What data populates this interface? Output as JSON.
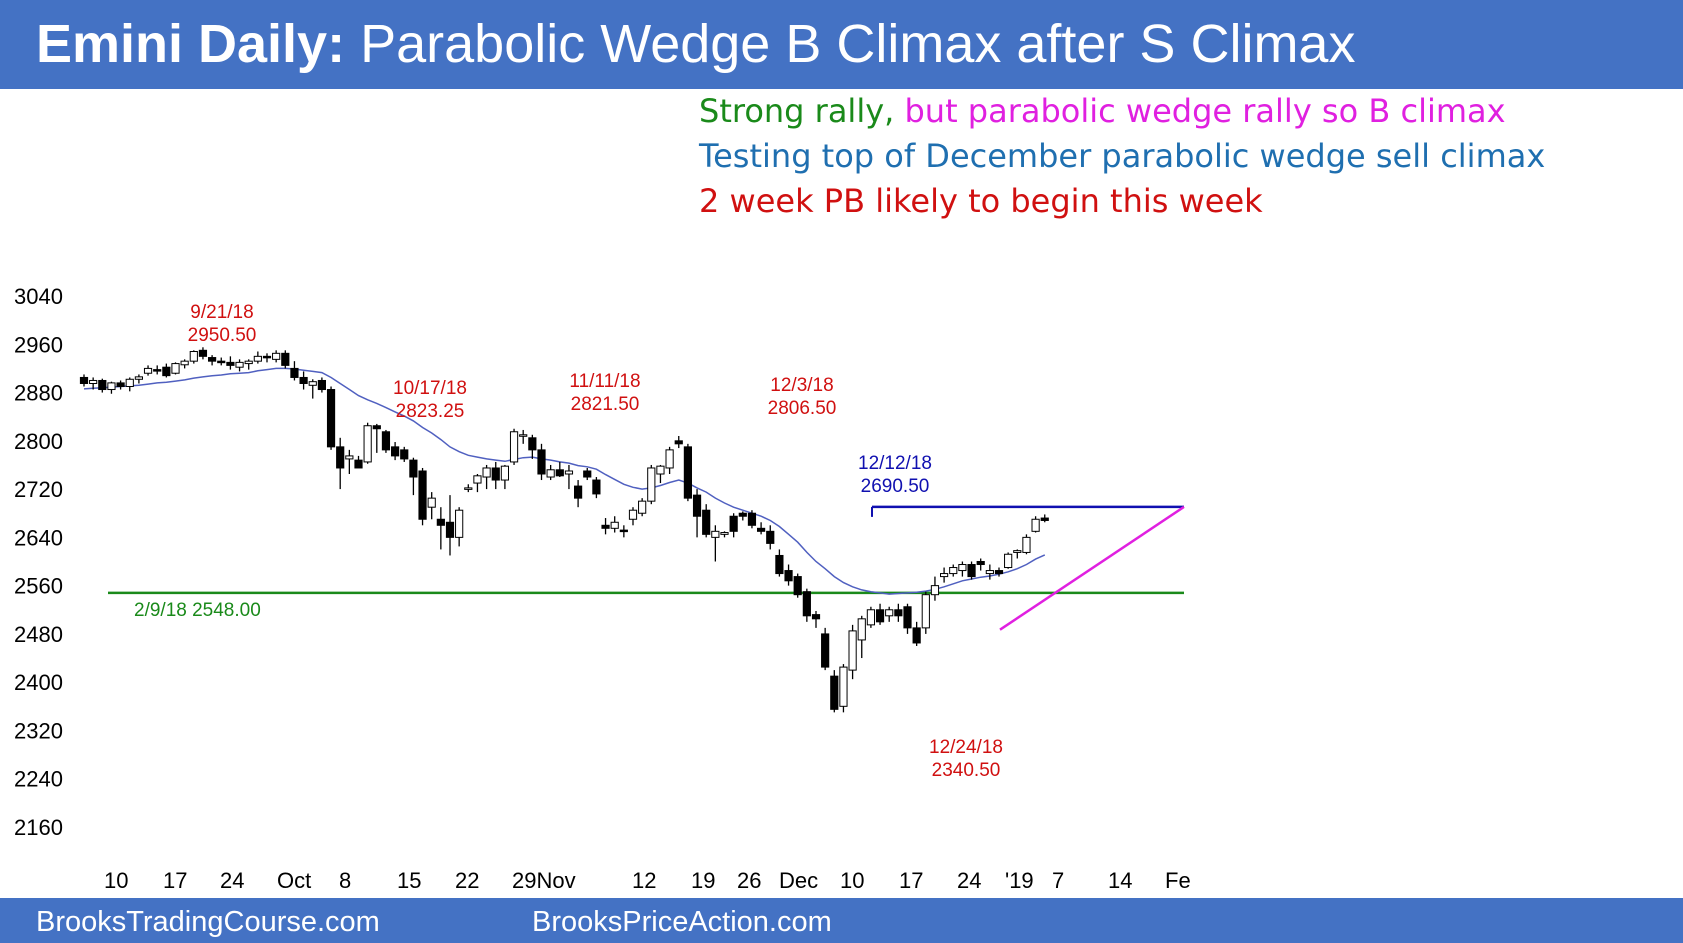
{
  "header": {
    "title_bold": "Emini Daily:",
    "title_rest": "Parabolic Wedge B Climax after S Climax"
  },
  "notes": {
    "line1_green": "Strong rally,",
    "line1_magenta": "but parabolic wedge rally so B climax",
    "line2": "Testing top of December parabolic wedge sell climax",
    "line3": "2 week PB likely to begin this week"
  },
  "footer": {
    "left": "BrooksTradingCourse.com",
    "right": "BrooksPriceAction.com"
  },
  "colors": {
    "header_bg": "#4472c4",
    "green": "#1a8a1a",
    "magenta": "#e020e0",
    "blue_text": "#1f6fb0",
    "red": "#d01010",
    "navy": "#1010b0",
    "ema": "#5060c0"
  },
  "chart_data": {
    "type": "candlestick",
    "ylim": [
      2160,
      3040
    ],
    "y_ticks": [
      3040,
      2960,
      2880,
      2800,
      2720,
      2640,
      2560,
      2480,
      2400,
      2320,
      2240,
      2160
    ],
    "x_tick_labels": [
      "10",
      "17",
      "24",
      "Oct",
      "8",
      "15",
      "22",
      "29Nov",
      "12",
      "19",
      "26",
      "Dec",
      "10",
      "17",
      "24",
      "'19",
      "7",
      "14",
      "Fe"
    ],
    "bars": [
      [
        2905,
        2910,
        2890,
        2895
      ],
      [
        2895,
        2905,
        2885,
        2900
      ],
      [
        2900,
        2903,
        2880,
        2885
      ],
      [
        2885,
        2898,
        2878,
        2896
      ],
      [
        2896,
        2900,
        2885,
        2890
      ],
      [
        2890,
        2905,
        2882,
        2902
      ],
      [
        2902,
        2910,
        2895,
        2906
      ],
      [
        2912,
        2925,
        2908,
        2920
      ],
      [
        2918,
        2925,
        2910,
        2916
      ],
      [
        2922,
        2928,
        2905,
        2908
      ],
      [
        2912,
        2930,
        2910,
        2928
      ],
      [
        2926,
        2935,
        2920,
        2932
      ],
      [
        2932,
        2950,
        2928,
        2948
      ],
      [
        2950,
        2955,
        2935,
        2940
      ],
      [
        2938,
        2942,
        2925,
        2932
      ],
      [
        2932,
        2938,
        2925,
        2930
      ],
      [
        2930,
        2940,
        2918,
        2925
      ],
      [
        2922,
        2935,
        2915,
        2930
      ],
      [
        2928,
        2935,
        2918,
        2932
      ],
      [
        2932,
        2948,
        2928,
        2940
      ],
      [
        2940,
        2945,
        2930,
        2938
      ],
      [
        2935,
        2950,
        2930,
        2945
      ],
      [
        2945,
        2950,
        2920,
        2925
      ],
      [
        2920,
        2932,
        2900,
        2905
      ],
      [
        2905,
        2915,
        2885,
        2895
      ],
      [
        2892,
        2902,
        2870,
        2898
      ],
      [
        2900,
        2905,
        2880,
        2885
      ],
      [
        2885,
        2890,
        2785,
        2790
      ],
      [
        2790,
        2805,
        2720,
        2755
      ],
      [
        2770,
        2785,
        2745,
        2775
      ],
      [
        2768,
        2775,
        2755,
        2755
      ],
      [
        2765,
        2830,
        2762,
        2825
      ],
      [
        2825,
        2828,
        2780,
        2820
      ],
      [
        2815,
        2818,
        2780,
        2785
      ],
      [
        2790,
        2798,
        2768,
        2775
      ],
      [
        2785,
        2790,
        2765,
        2770
      ],
      [
        2768,
        2772,
        2710,
        2740
      ],
      [
        2750,
        2755,
        2660,
        2670
      ],
      [
        2690,
        2715,
        2670,
        2705
      ],
      [
        2670,
        2690,
        2620,
        2660
      ],
      [
        2665,
        2710,
        2610,
        2640
      ],
      [
        2640,
        2690,
        2625,
        2685
      ],
      [
        2720,
        2728,
        2715,
        2722
      ],
      [
        2730,
        2745,
        2715,
        2742
      ],
      [
        2740,
        2760,
        2720,
        2755
      ],
      [
        2755,
        2765,
        2720,
        2735
      ],
      [
        2735,
        2760,
        2720,
        2758
      ],
      [
        2765,
        2820,
        2760,
        2815
      ],
      [
        2808,
        2818,
        2795,
        2810
      ],
      [
        2805,
        2810,
        2770,
        2785
      ],
      [
        2785,
        2795,
        2735,
        2745
      ],
      [
        2740,
        2760,
        2735,
        2752
      ],
      [
        2752,
        2765,
        2740,
        2742
      ],
      [
        2745,
        2760,
        2720,
        2750
      ],
      [
        2725,
        2735,
        2690,
        2705
      ],
      [
        2750,
        2755,
        2735,
        2740
      ],
      [
        2735,
        2740,
        2705,
        2712
      ],
      [
        2660,
        2672,
        2645,
        2655
      ],
      [
        2655,
        2675,
        2648,
        2665
      ],
      [
        2652,
        2660,
        2640,
        2650
      ],
      [
        2670,
        2690,
        2660,
        2685
      ],
      [
        2680,
        2705,
        2675,
        2700
      ],
      [
        2700,
        2760,
        2695,
        2755
      ],
      [
        2745,
        2760,
        2730,
        2758
      ],
      [
        2755,
        2790,
        2745,
        2785
      ],
      [
        2800,
        2808,
        2788,
        2795
      ],
      [
        2790,
        2795,
        2700,
        2705
      ],
      [
        2710,
        2720,
        2640,
        2675
      ],
      [
        2685,
        2695,
        2640,
        2645
      ],
      [
        2640,
        2660,
        2600,
        2650
      ],
      [
        2645,
        2650,
        2640,
        2648
      ],
      [
        2675,
        2680,
        2640,
        2650
      ],
      [
        2680,
        2683,
        2668,
        2675
      ],
      [
        2680,
        2685,
        2655,
        2660
      ],
      [
        2655,
        2665,
        2645,
        2650
      ],
      [
        2650,
        2660,
        2620,
        2630
      ],
      [
        2610,
        2620,
        2575,
        2580
      ],
      [
        2585,
        2595,
        2560,
        2568
      ],
      [
        2575,
        2580,
        2540,
        2545
      ],
      [
        2550,
        2555,
        2500,
        2510
      ],
      [
        2512,
        2518,
        2490,
        2505
      ],
      [
        2480,
        2490,
        2420,
        2425
      ],
      [
        2410,
        2420,
        2350,
        2355
      ],
      [
        2360,
        2430,
        2350,
        2425
      ],
      [
        2420,
        2495,
        2405,
        2485
      ],
      [
        2470,
        2510,
        2440,
        2505
      ],
      [
        2495,
        2525,
        2490,
        2520
      ],
      [
        2520,
        2530,
        2495,
        2500
      ],
      [
        2510,
        2525,
        2500,
        2520
      ],
      [
        2520,
        2530,
        2500,
        2510
      ],
      [
        2525,
        2530,
        2480,
        2490
      ],
      [
        2490,
        2500,
        2460,
        2465
      ],
      [
        2490,
        2550,
        2480,
        2545
      ],
      [
        2545,
        2575,
        2535,
        2560
      ],
      [
        2575,
        2590,
        2565,
        2580
      ],
      [
        2580,
        2595,
        2575,
        2590
      ],
      [
        2585,
        2600,
        2575,
        2595
      ],
      [
        2595,
        2600,
        2570,
        2575
      ],
      [
        2600,
        2605,
        2585,
        2595
      ],
      [
        2580,
        2595,
        2570,
        2585
      ],
      [
        2585,
        2590,
        2575,
        2580
      ],
      [
        2590,
        2615,
        2588,
        2612
      ],
      [
        2615,
        2620,
        2605,
        2618
      ],
      [
        2615,
        2645,
        2612,
        2640
      ],
      [
        2650,
        2675,
        2648,
        2670
      ],
      [
        2672,
        2678,
        2665,
        2668
      ]
    ],
    "ema20": [
      2886,
      2887,
      2888,
      2889,
      2890,
      2891,
      2892,
      2894,
      2896,
      2897,
      2899,
      2901,
      2904,
      2906,
      2908,
      2909,
      2911,
      2912,
      2913,
      2916,
      2918,
      2920,
      2920,
      2919,
      2917,
      2915,
      2913,
      2905,
      2895,
      2885,
      2875,
      2868,
      2862,
      2855,
      2848,
      2841,
      2833,
      2822,
      2813,
      2802,
      2790,
      2782,
      2776,
      2773,
      2770,
      2768,
      2766,
      2769,
      2772,
      2773,
      2770,
      2768,
      2765,
      2763,
      2759,
      2757,
      2753,
      2744,
      2736,
      2728,
      2723,
      2720,
      2722,
      2726,
      2731,
      2735,
      2730,
      2722,
      2715,
      2705,
      2697,
      2690,
      2685,
      2680,
      2675,
      2668,
      2658,
      2645,
      2632,
      2615,
      2600,
      2588,
      2575,
      2565,
      2558,
      2553,
      2550,
      2548,
      2546,
      2547,
      2548,
      2549,
      2551,
      2554,
      2558,
      2563,
      2568,
      2571,
      2574,
      2576,
      2579,
      2583,
      2588,
      2595,
      2604,
      2611
    ],
    "lines": [
      {
        "label": "2/9/18 2548.00",
        "value": 2548.0,
        "color": "green"
      },
      {
        "label": "12/12/18 2690.50",
        "value": 2690.5,
        "color": "navy"
      }
    ],
    "annotations": [
      {
        "date": "9/21/18",
        "price": "2950.50"
      },
      {
        "date": "10/17/18",
        "price": "2823.25"
      },
      {
        "date": "11/11/18",
        "price": "2821.50"
      },
      {
        "date": "12/3/18",
        "price": "2806.50"
      },
      {
        "date": "12/12/18",
        "price": "2690.50"
      },
      {
        "date": "12/24/18",
        "price": "2340.50"
      }
    ],
    "wedge_line": {
      "from": [
        2528,
        2550
      ],
      "to": [
        2548,
        2690.5
      ]
    }
  }
}
